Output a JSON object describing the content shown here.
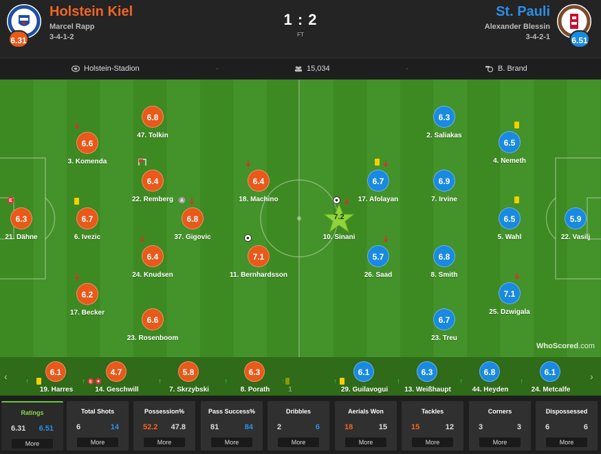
{
  "header": {
    "home": {
      "name": "Holstein Kiel",
      "manager": "Marcel Rapp",
      "formation": "3-4-1-2",
      "rating": "6.31",
      "crest_icon": "holstein-kiel-crest-icon"
    },
    "away": {
      "name": "St. Pauli",
      "manager": "Alexander Blessin",
      "formation": "3-4-2-1",
      "rating": "6.51",
      "crest_icon": "st-pauli-crest-icon"
    },
    "score": "1 : 2",
    "status": "FT"
  },
  "info": {
    "stadium": "Holstein-Stadion",
    "attendance": "15,034",
    "referee": "B. Brand"
  },
  "colors": {
    "home": "#e8591a",
    "away": "#1a8ae0",
    "pitch": "#3e8a22"
  },
  "home_players": [
    {
      "name": "21. Dähne",
      "rating": "6.3",
      "badges": [
        "error-badge"
      ]
    },
    {
      "name": "3. Komenda",
      "rating": "6.6",
      "badges": [
        "sub-off-arrow"
      ]
    },
    {
      "name": "6. Ivezic",
      "rating": "6.7",
      "badges": [
        "yellow-card"
      ]
    },
    {
      "name": "17. Becker",
      "rating": "6.2",
      "badges": [
        "sub-off-arrow"
      ]
    },
    {
      "name": "47. Tolkin",
      "rating": "6.8",
      "badges": []
    },
    {
      "name": "22. Remberg",
      "rating": "6.4",
      "badges": [
        "corner-flag"
      ]
    },
    {
      "name": "24. Knudsen",
      "rating": "6.4",
      "badges": [
        "sub-off-arrow"
      ]
    },
    {
      "name": "23. Rosenboom",
      "rating": "6.6",
      "badges": []
    },
    {
      "name": "37. Gigovic",
      "rating": "6.8",
      "badges": [
        "assist-badge",
        "sub-off-arrow"
      ]
    },
    {
      "name": "18. Machino",
      "rating": "6.4",
      "badges": [
        "sub-off-arrow"
      ]
    },
    {
      "name": "11. Bernhardsson",
      "rating": "7.1",
      "badges": [
        "goal-ball"
      ]
    }
  ],
  "away_players": [
    {
      "name": "10. Sinani",
      "rating": "7.2",
      "badges": [
        "goal-ball",
        "sub-off-arrow",
        "man-of-match-star"
      ]
    },
    {
      "name": "17. Afolayan",
      "rating": "6.7",
      "badges": [
        "yellow-card",
        "sub-off-arrow"
      ]
    },
    {
      "name": "26. Saad",
      "rating": "5.7",
      "badges": [
        "sub-off-arrow"
      ]
    },
    {
      "name": "2. Saliakas",
      "rating": "6.3",
      "badges": []
    },
    {
      "name": "7. Irvine",
      "rating": "6.9",
      "badges": []
    },
    {
      "name": "8. Smith",
      "rating": "6.8",
      "badges": []
    },
    {
      "name": "23. Treu",
      "rating": "6.7",
      "badges": []
    },
    {
      "name": "4. Nemeth",
      "rating": "6.5",
      "badges": [
        "yellow-card"
      ]
    },
    {
      "name": "5. Wahl",
      "rating": "6.5",
      "badges": [
        "yellow-card"
      ]
    },
    {
      "name": "25. Dzwigala",
      "rating": "7.1",
      "badges": [
        "sub-off-arrow"
      ]
    },
    {
      "name": "22. Vasilj",
      "rating": "5.9",
      "badges": []
    }
  ],
  "subs": [
    {
      "name": "19. Harres",
      "rating": "6.1",
      "team": "home"
    },
    {
      "name": "14. Geschwill",
      "rating": "4.7",
      "team": "home"
    },
    {
      "name": "7. Skrzybski",
      "rating": "5.8",
      "team": "home"
    },
    {
      "name": "8. Porath",
      "rating": "6.3",
      "team": "home"
    },
    {
      "name": "1",
      "rating": "",
      "team": "home"
    },
    {
      "name": "29. Guilavogui",
      "rating": "6.1",
      "team": "away"
    },
    {
      "name": "13. Weißhaupt",
      "rating": "6.3",
      "team": "away"
    },
    {
      "name": "44. Heyden",
      "rating": "6.8",
      "team": "away"
    },
    {
      "name": "24. Metcalfe",
      "rating": "6.1",
      "team": "away"
    }
  ],
  "stats": [
    {
      "title": "Ratings",
      "home": "6.31",
      "away": "6.51",
      "more": "More"
    },
    {
      "title": "Total Shots",
      "home": "6",
      "away": "14",
      "more": "More"
    },
    {
      "title": "Possession%",
      "home": "52.2",
      "away": "47.8",
      "more": "More"
    },
    {
      "title": "Pass Success%",
      "home": "81",
      "away": "84",
      "more": "More"
    },
    {
      "title": "Dribbles",
      "home": "2",
      "away": "6",
      "more": "More"
    },
    {
      "title": "Aerials Won",
      "home": "18",
      "away": "15",
      "more": "More"
    },
    {
      "title": "Tackles",
      "home": "15",
      "away": "12",
      "more": "More"
    },
    {
      "title": "Corners",
      "home": "3",
      "away": "3",
      "more": "More"
    },
    {
      "title": "Dispossessed",
      "home": "6",
      "away": "6",
      "more": "More"
    }
  ],
  "watermark": {
    "brand": "WhoScored",
    "suffix": ".com"
  }
}
